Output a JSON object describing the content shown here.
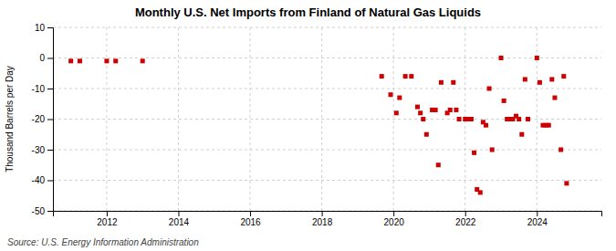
{
  "chart_data": {
    "type": "scatter",
    "title": "Monthly U.S. Net Imports from Finland of Natural Gas Liquids",
    "ylabel": "Thousand Barrels per Day",
    "annotation": "Source: U.S. Energy Information Administration",
    "color": "#cc0000",
    "marker": "square",
    "grid": true,
    "xlim": [
      2010.5,
      2025.8
    ],
    "xticks": [
      2012,
      2014,
      2016,
      2018,
      2020,
      2022,
      2024
    ],
    "ylim": [
      -50,
      10
    ],
    "yticks": [
      -50,
      -40,
      -30,
      -20,
      -10,
      0,
      10
    ],
    "x": [
      2011.0,
      2011.25,
      2012.0,
      2012.25,
      2013.0,
      2019.67,
      2019.92,
      2020.08,
      2020.17,
      2020.33,
      2020.5,
      2020.67,
      2020.75,
      2020.83,
      2020.92,
      2021.08,
      2021.17,
      2021.25,
      2021.33,
      2021.5,
      2021.58,
      2021.67,
      2021.75,
      2021.83,
      2022.0,
      2022.08,
      2022.17,
      2022.25,
      2022.33,
      2022.42,
      2022.5,
      2022.58,
      2022.67,
      2022.75,
      2023.0,
      2023.08,
      2023.17,
      2023.25,
      2023.33,
      2023.42,
      2023.5,
      2023.58,
      2023.67,
      2023.75,
      2024.0,
      2024.08,
      2024.17,
      2024.25,
      2024.33,
      2024.42,
      2024.5,
      2024.67,
      2024.75,
      2024.83
    ],
    "values": [
      -1,
      -1,
      -1,
      -1,
      -1,
      -6,
      -12,
      -18,
      -13,
      -6,
      -6,
      -16,
      -18,
      -20,
      -25,
      -17,
      -17,
      -35,
      -8,
      -18,
      -17,
      -8,
      -17,
      -20,
      -20,
      -20,
      -20,
      -31,
      -43,
      -44,
      -21,
      -22,
      -10,
      -30,
      0,
      -14,
      -20,
      -20,
      -20,
      -19,
      -20,
      -25,
      -7,
      -20,
      0,
      -8,
      -22,
      -22,
      -22,
      -7,
      -13,
      -30,
      -6,
      -41
    ]
  }
}
